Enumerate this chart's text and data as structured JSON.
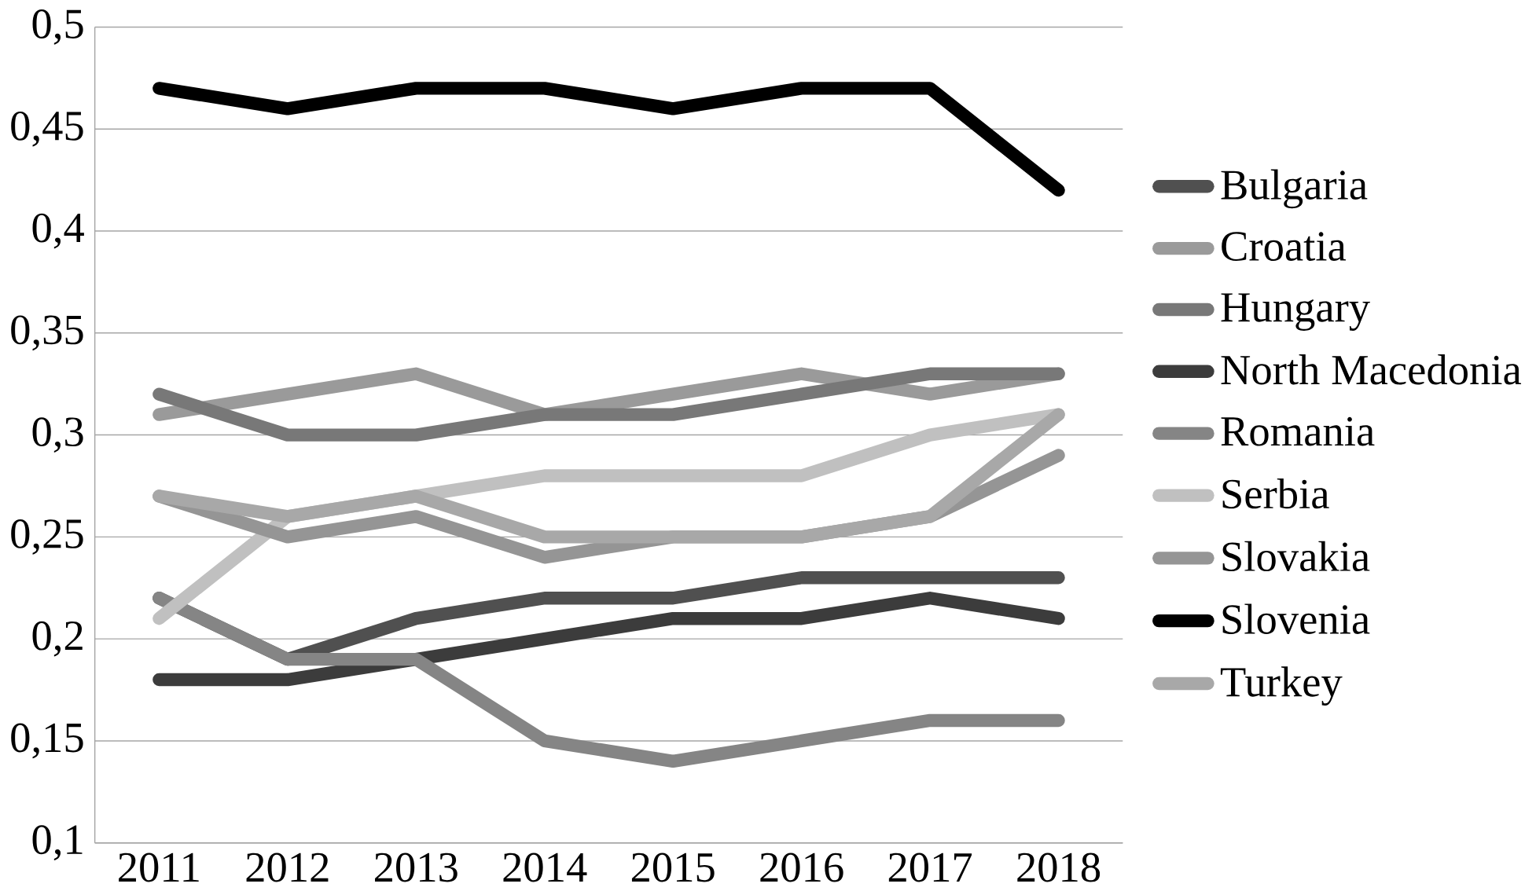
{
  "chart_data": {
    "type": "line",
    "categories": [
      "2011",
      "2012",
      "2013",
      "2014",
      "2015",
      "2016",
      "2017",
      "2018"
    ],
    "series": [
      {
        "name": "Bulgaria",
        "color": "#505050",
        "values": [
          0.22,
          0.19,
          0.21,
          0.22,
          0.22,
          0.23,
          0.23,
          0.23
        ]
      },
      {
        "name": "Croatia",
        "color": "#9a9a9a",
        "values": [
          0.31,
          0.32,
          0.33,
          0.31,
          0.32,
          0.33,
          0.32,
          0.33
        ]
      },
      {
        "name": "Hungary",
        "color": "#787878",
        "values": [
          0.32,
          0.3,
          0.3,
          0.31,
          0.31,
          0.32,
          0.33,
          0.33
        ]
      },
      {
        "name": "North Macedonia",
        "color": "#3c3c3c",
        "values": [
          0.18,
          0.18,
          0.19,
          0.2,
          0.21,
          0.21,
          0.22,
          0.21
        ]
      },
      {
        "name": "Romania",
        "color": "#858585",
        "values": [
          0.22,
          0.19,
          0.19,
          0.15,
          0.14,
          0.15,
          0.16,
          0.16
        ]
      },
      {
        "name": "Serbia",
        "color": "#c0c0c0",
        "values": [
          0.21,
          0.26,
          0.27,
          0.28,
          0.28,
          0.28,
          0.3,
          0.31
        ]
      },
      {
        "name": "Slovakia",
        "color": "#959595",
        "values": [
          0.27,
          0.25,
          0.26,
          0.24,
          0.25,
          0.25,
          0.26,
          0.29
        ]
      },
      {
        "name": "Slovenia",
        "color": "#000000",
        "values": [
          0.47,
          0.46,
          0.47,
          0.47,
          0.46,
          0.47,
          0.47,
          0.42
        ]
      },
      {
        "name": "Turkey",
        "color": "#a8a8a8",
        "values": [
          0.27,
          0.26,
          0.27,
          0.25,
          0.25,
          0.25,
          0.26,
          0.31
        ]
      }
    ],
    "ylim": [
      0.1,
      0.5
    ],
    "yticks": [
      {
        "value": 0.1,
        "label": "0,1"
      },
      {
        "value": 0.15,
        "label": "0,15"
      },
      {
        "value": 0.2,
        "label": "0,2"
      },
      {
        "value": 0.25,
        "label": "0,25"
      },
      {
        "value": 0.3,
        "label": "0,3"
      },
      {
        "value": 0.35,
        "label": "0,35"
      },
      {
        "value": 0.4,
        "label": "0,4"
      },
      {
        "value": 0.45,
        "label": "0,45"
      },
      {
        "value": 0.5,
        "label": "0,5"
      }
    ],
    "grid": "y",
    "legend": "right",
    "marker": "none",
    "line_style": "solid"
  }
}
